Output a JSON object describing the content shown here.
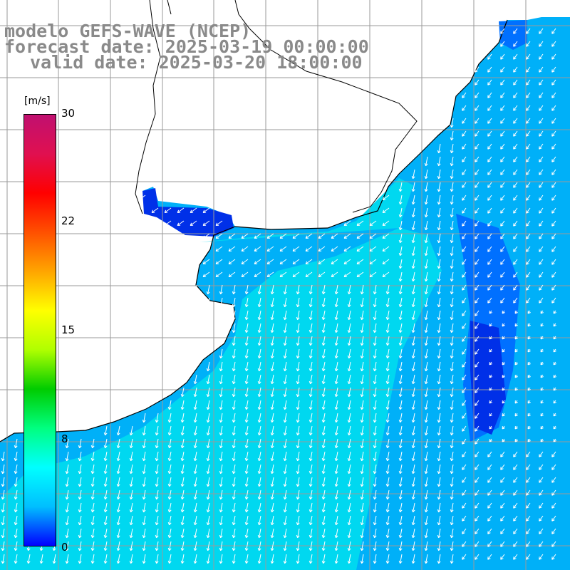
{
  "titles": {
    "line1": "modelo GEFS-WAVE (NCEP)",
    "line2": "forecast date: 2025-03-19 00:00:00",
    "line3": "valid date: 2025-03-20 18:00:00"
  },
  "colorbar": {
    "unit": "[m/s]",
    "ticks": [
      "30",
      "22",
      "15",
      "8",
      "0"
    ],
    "colors": [
      "#0000ff",
      "#00bfff",
      "#00ffff",
      "#00ff80",
      "#00cc00",
      "#b0ff00",
      "#ffff00",
      "#ffa500",
      "#ff5000",
      "#ff0000",
      "#e01050",
      "#c01070"
    ]
  },
  "map": {
    "ocean_light": "#00d8f0",
    "ocean_mid": "#00b0f8",
    "ocean_blue": "#0070ff",
    "ocean_deep": "#0030e8",
    "land": "#ffffff",
    "grid": "#9a9a9a",
    "coastline": "#000000",
    "arrow": "#ffffff"
  }
}
